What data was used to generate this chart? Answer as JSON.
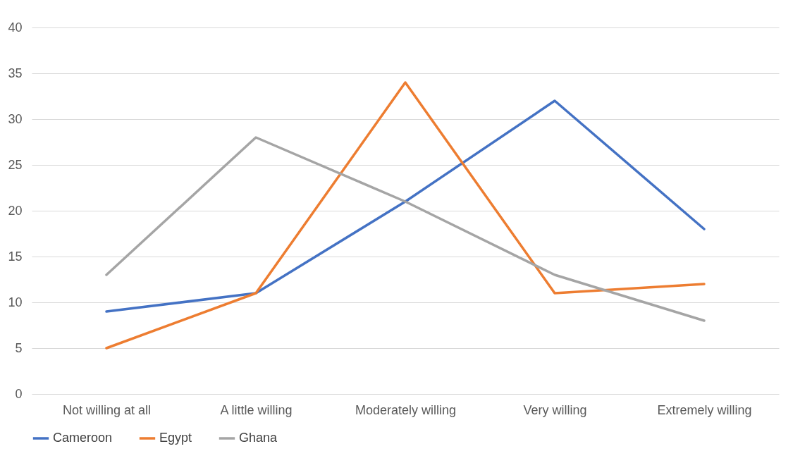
{
  "chart_data": {
    "type": "line",
    "categories": [
      "Not willing at all",
      "A little willing",
      "Moderately willing",
      "Very willing",
      "Extremely willing"
    ],
    "series": [
      {
        "name": "Cameroon",
        "color": "#4472c4",
        "values": [
          9,
          11,
          21,
          32,
          18
        ]
      },
      {
        "name": "Egypt",
        "color": "#ed7d31",
        "values": [
          5,
          11,
          34,
          11,
          12
        ]
      },
      {
        "name": "Ghana",
        "color": "#a5a5a5",
        "values": [
          13,
          28,
          21,
          13,
          8
        ]
      }
    ],
    "ylim": [
      0,
      40
    ],
    "yticks": [
      0,
      5,
      10,
      15,
      20,
      25,
      30,
      35,
      40
    ],
    "grid": "y",
    "legend": "bottom",
    "marker": "none",
    "line_style": "solid"
  }
}
